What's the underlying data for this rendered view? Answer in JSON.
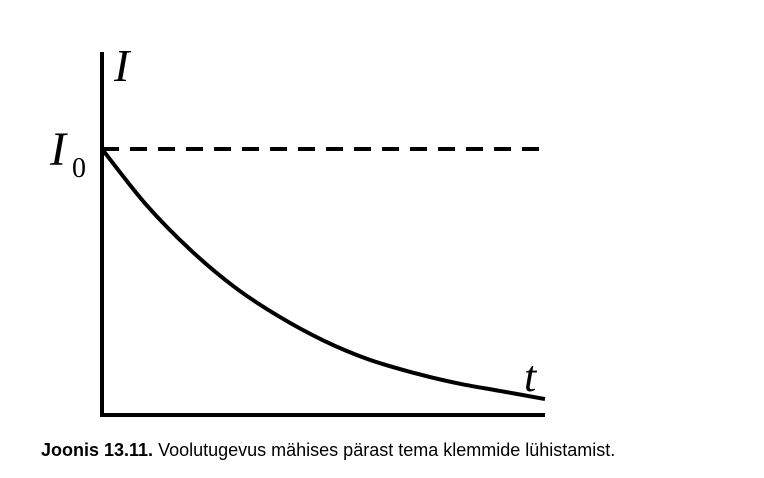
{
  "chart_data": {
    "type": "line",
    "ylabel": "I",
    "xlabel": "t",
    "reference_line": {
      "label_main": "I",
      "label_sub": "0",
      "style": "dashed",
      "value": 1.0
    },
    "series": [
      {
        "function": "exponential decay",
        "x": [
          0,
          0.1,
          0.2,
          0.3,
          0.4,
          0.5,
          0.6,
          0.7,
          0.8,
          0.9,
          1.0
        ],
        "y": [
          1.0,
          0.79,
          0.62,
          0.48,
          0.37,
          0.28,
          0.21,
          0.16,
          0.12,
          0.09,
          0.06
        ]
      }
    ],
    "xlim": [
      0,
      1.0
    ],
    "ylim": [
      0,
      1.0
    ],
    "grid": false,
    "tick_labels": false
  },
  "caption": {
    "label": "Joonis 13.11.",
    "text": " Voolutugevus mähises pärast tema klemmide lühistamist."
  },
  "colors": {
    "line": "#000000",
    "background": "#ffffff"
  }
}
